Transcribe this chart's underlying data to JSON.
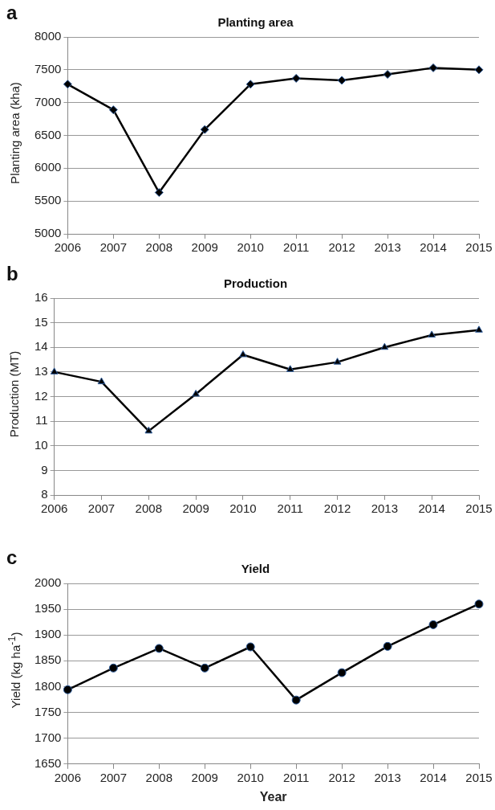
{
  "chart_data": [
    {
      "type": "line",
      "title": "Planting area",
      "ylabel": "Planting area (kha)",
      "annotations": [
        "a"
      ],
      "categories": [
        "2006",
        "2007",
        "2008",
        "2009",
        "2010",
        "2011",
        "2012",
        "2013",
        "2014",
        "2015"
      ],
      "series": [
        {
          "color": "#000000",
          "values": [
            7280,
            6890,
            5630,
            6590,
            7280,
            7370,
            7340,
            7430,
            7530,
            7500
          ]
        }
      ],
      "ylim": [
        5000,
        8000
      ],
      "yticks": [
        5000,
        5500,
        6000,
        6500,
        7000,
        7500,
        8000
      ],
      "grid": "y",
      "legend": false,
      "marker": "diamond",
      "line_style": "solid"
    },
    {
      "type": "line",
      "title": "Production",
      "ylabel": "Production (MT)",
      "annotations": [
        "b"
      ],
      "categories": [
        "2006",
        "2007",
        "2008",
        "2009",
        "2010",
        "2011",
        "2012",
        "2013",
        "2014",
        "2015"
      ],
      "series": [
        {
          "color": "#000000",
          "values": [
            13.0,
            12.6,
            10.6,
            12.1,
            13.7,
            13.1,
            13.4,
            14.0,
            14.5,
            14.7
          ]
        }
      ],
      "ylim": [
        8,
        16
      ],
      "yticks": [
        8,
        9,
        10,
        11,
        12,
        13,
        14,
        15,
        16
      ],
      "grid": "y",
      "legend": false,
      "marker": "triangle",
      "line_style": "solid"
    },
    {
      "type": "line",
      "title": "Yield",
      "xlabel": "Year",
      "ylabel": "Yield (kg ha$^{-1}$)",
      "annotations": [
        "c"
      ],
      "categories": [
        "2006",
        "2007",
        "2008",
        "2009",
        "2010",
        "2011",
        "2012",
        "2013",
        "2014",
        "2015"
      ],
      "series": [
        {
          "color": "#000000",
          "values": [
            1794,
            1836,
            1874,
            1836,
            1877,
            1774,
            1827,
            1878,
            1920,
            1960
          ]
        }
      ],
      "ylim": [
        1650,
        2000
      ],
      "yticks": [
        1650,
        1700,
        1750,
        1800,
        1850,
        1900,
        1950,
        2000
      ],
      "grid": "y",
      "legend": false,
      "marker": "circle",
      "line_style": "solid"
    }
  ]
}
